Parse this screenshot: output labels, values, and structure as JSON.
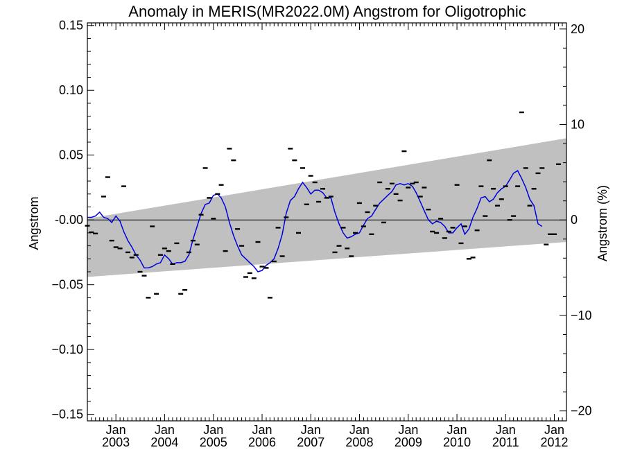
{
  "chart_data": {
    "type": "scatter",
    "title": "Anomaly in MERIS(MR2022.0M) Angstrom for Oligotrophic",
    "ylabel_left": "Angstrom",
    "ylabel_right": "Angstrom (%)",
    "ylim_left": [
      -0.155,
      0.152
    ],
    "ylim_right": [
      -21.04,
      20.64
    ],
    "y_ticks_left": [
      {
        "value": 0.15,
        "label": "0.15"
      },
      {
        "value": 0.1,
        "label": "0.10"
      },
      {
        "value": 0.05,
        "label": "0.05"
      },
      {
        "value": 0.0,
        "label": "-0.00"
      },
      {
        "value": -0.05,
        "label": "−0.05"
      },
      {
        "value": -0.1,
        "label": "−0.10"
      },
      {
        "value": -0.15,
        "label": "−0.15"
      }
    ],
    "y_ticks_right": [
      {
        "value": 20,
        "label": "20"
      },
      {
        "value": 10,
        "label": "10"
      },
      {
        "value": 0,
        "label": "0"
      },
      {
        "value": -10,
        "label": "−10"
      },
      {
        "value": -20,
        "label": "−20"
      }
    ],
    "x_range": [
      "2002-06-01",
      "2012-04-01"
    ],
    "x_ticks": [
      {
        "date": "2003-01-01",
        "month": "Jan",
        "year": "2003"
      },
      {
        "date": "2004-01-01",
        "month": "Jan",
        "year": "2004"
      },
      {
        "date": "2005-01-01",
        "month": "Jan",
        "year": "2005"
      },
      {
        "date": "2006-01-01",
        "month": "Jan",
        "year": "2006"
      },
      {
        "date": "2007-01-01",
        "month": "Jan",
        "year": "2007"
      },
      {
        "date": "2008-01-01",
        "month": "Jan",
        "year": "2008"
      },
      {
        "date": "2009-01-01",
        "month": "Jan",
        "year": "2009"
      },
      {
        "date": "2010-01-01",
        "month": "Jan",
        "year": "2010"
      },
      {
        "date": "2011-01-01",
        "month": "Jan",
        "year": "2011"
      },
      {
        "date": "2012-01-01",
        "month": "Jan",
        "year": "2012"
      }
    ],
    "band": {
      "upper_start": [
        "2002-06-01",
        0.001
      ],
      "upper_end": [
        "2012-04-01",
        0.063
      ],
      "lower_start": [
        "2002-06-01",
        -0.044
      ],
      "lower_end": [
        "2012-04-01",
        -0.017
      ],
      "color": "#c0c0c0"
    },
    "zero_line": 0.0,
    "colors": {
      "smoothed": "#0000dd",
      "points": "#000000",
      "band": "#c0c0c0"
    },
    "series": [
      {
        "type": "scatter",
        "marker": "dash",
        "points": [
          [
            "2002-06-01",
            -0.0045
          ],
          [
            "2002-07-01",
            -0.0095
          ],
          [
            "2002-08-01",
            -0.0105
          ],
          [
            "2002-10-01",
            0.018
          ],
          [
            "2002-11-01",
            0.033
          ],
          [
            "2002-12-01",
            -0.016
          ],
          [
            "2003-01-01",
            -0.021
          ],
          [
            "2003-02-01",
            -0.022
          ],
          [
            "2003-03-01",
            0.026
          ],
          [
            "2003-04-01",
            -0.025
          ],
          [
            "2003-05-01",
            -0.029
          ],
          [
            "2003-06-01",
            -0.027
          ],
          [
            "2003-07-01",
            -0.04
          ],
          [
            "2003-08-01",
            -0.043
          ],
          [
            "2003-09-01",
            -0.06
          ],
          [
            "2003-10-01",
            -0.005
          ],
          [
            "2003-11-01",
            -0.057
          ],
          [
            "2003-12-01",
            -0.027
          ],
          [
            "2004-01-01",
            -0.022
          ],
          [
            "2004-02-01",
            -0.024
          ],
          [
            "2004-03-01",
            -0.034
          ],
          [
            "2004-04-01",
            -0.018
          ],
          [
            "2004-05-01",
            -0.057
          ],
          [
            "2004-06-01",
            -0.054
          ],
          [
            "2004-07-01",
            -0.025
          ],
          [
            "2004-08-01",
            -0.016
          ],
          [
            "2004-09-01",
            -0.019
          ],
          [
            "2004-10-01",
            0.004
          ],
          [
            "2004-11-01",
            0.04
          ],
          [
            "2004-12-01",
            0.017
          ],
          [
            "2005-01-01",
            0.001
          ],
          [
            "2005-02-01",
            0.02
          ],
          [
            "2005-03-01",
            0.027
          ],
          [
            "2005-04-01",
            -0.024
          ],
          [
            "2005-05-01",
            0.055
          ],
          [
            "2005-06-01",
            0.046
          ],
          [
            "2005-07-01",
            -0.007
          ],
          [
            "2005-08-01",
            -0.02
          ],
          [
            "2005-09-01",
            -0.044
          ],
          [
            "2005-10-01",
            -0.041
          ],
          [
            "2005-11-01",
            -0.045
          ],
          [
            "2005-12-01",
            -0.017
          ],
          [
            "2006-01-01",
            -0.036
          ],
          [
            "2006-02-01",
            -0.037
          ],
          [
            "2006-03-01",
            -0.06
          ],
          [
            "2006-04-01",
            -0.032
          ],
          [
            "2006-05-01",
            -0.006
          ],
          [
            "2006-06-01",
            -0.028
          ],
          [
            "2006-07-01",
            0.002
          ],
          [
            "2006-08-01",
            0.055
          ],
          [
            "2006-09-01",
            0.046
          ],
          [
            "2006-10-01",
            -0.01
          ],
          [
            "2006-11-01",
            0.04
          ],
          [
            "2006-12-01",
            0.012
          ],
          [
            "2007-01-01",
            0.034
          ],
          [
            "2007-02-01",
            0.029
          ],
          [
            "2007-03-01",
            0.014
          ],
          [
            "2007-04-01",
            0.024
          ],
          [
            "2007-05-01",
            0.017
          ],
          [
            "2007-06-01",
            0.018
          ],
          [
            "2007-07-01",
            -0.025
          ],
          [
            "2007-08-01",
            -0.02
          ],
          [
            "2007-09-01",
            -0.006
          ],
          [
            "2007-10-01",
            -0.022
          ],
          [
            "2007-11-01",
            -0.028
          ],
          [
            "2007-12-01",
            -0.01
          ],
          [
            "2008-01-01",
            0.013
          ],
          [
            "2008-02-01",
            -0.005
          ],
          [
            "2008-03-01",
            0.006
          ],
          [
            "2008-04-01",
            -0.011
          ],
          [
            "2008-05-01",
            0.011
          ],
          [
            "2008-06-01",
            0.029
          ],
          [
            "2008-07-01",
            -0.002
          ],
          [
            "2008-08-01",
            0.024
          ],
          [
            "2008-09-01",
            0.028
          ],
          [
            "2008-10-01",
            0.02
          ],
          [
            "2008-11-01",
            0.015
          ],
          [
            "2008-12-01",
            0.053
          ],
          [
            "2009-01-01",
            0.025
          ],
          [
            "2009-02-01",
            0.028
          ],
          [
            "2009-03-01",
            0.029
          ],
          [
            "2009-04-01",
            0.018
          ],
          [
            "2009-05-01",
            0.025
          ],
          [
            "2009-06-01",
            0.008
          ],
          [
            "2009-07-01",
            -0.009
          ],
          [
            "2009-08-01",
            -0.01
          ],
          [
            "2009-09-01",
            0.001
          ],
          [
            "2009-10-01",
            -0.014
          ],
          [
            "2009-11-01",
            -0.009
          ],
          [
            "2009-12-01",
            -0.006
          ],
          [
            "2010-01-01",
            0.027
          ],
          [
            "2010-02-01",
            -0.018
          ],
          [
            "2010-03-01",
            -0.005
          ],
          [
            "2010-04-01",
            -0.03
          ],
          [
            "2010-05-01",
            -0.029
          ],
          [
            "2010-06-01",
            -0.008
          ],
          [
            "2010-07-01",
            0.026
          ],
          [
            "2010-08-01",
            0.003
          ],
          [
            "2010-09-01",
            0.046
          ],
          [
            "2010-10-01",
            0.024
          ],
          [
            "2010-11-01",
            0.011
          ],
          [
            "2010-12-01",
            0.016
          ],
          [
            "2011-01-01",
            0.026
          ],
          [
            "2011-02-01",
            0.0
          ],
          [
            "2011-03-01",
            0.003
          ],
          [
            "2011-04-01",
            0.026
          ],
          [
            "2011-05-01",
            0.083
          ],
          [
            "2011-06-01",
            0.04
          ],
          [
            "2011-07-01",
            0.011
          ],
          [
            "2011-08-01",
            0.024
          ],
          [
            "2011-09-01",
            0.036
          ],
          [
            "2011-10-01",
            0.04
          ],
          [
            "2011-11-01",
            -0.019
          ],
          [
            "2011-12-01",
            -0.011
          ],
          [
            "2012-01-01",
            -0.011
          ],
          [
            "2012-02-01",
            0.043
          ]
        ]
      },
      {
        "type": "line",
        "points": [
          [
            "2002-06-01",
            0.002
          ],
          [
            "2002-07-01",
            0.002
          ],
          [
            "2002-08-01",
            0.003
          ],
          [
            "2002-09-01",
            0.006
          ],
          [
            "2002-10-01",
            0.002
          ],
          [
            "2002-11-01",
            0.001
          ],
          [
            "2002-12-01",
            -0.002
          ],
          [
            "2003-01-01",
            0.003
          ],
          [
            "2003-02-01",
            -0.001
          ],
          [
            "2003-03-01",
            -0.009
          ],
          [
            "2003-04-01",
            -0.016
          ],
          [
            "2003-05-01",
            -0.021
          ],
          [
            "2003-06-01",
            -0.027
          ],
          [
            "2003-07-01",
            -0.031
          ],
          [
            "2003-08-01",
            -0.037
          ],
          [
            "2003-09-01",
            -0.037
          ],
          [
            "2003-10-01",
            -0.036
          ],
          [
            "2003-11-01",
            -0.034
          ],
          [
            "2003-12-01",
            -0.033
          ],
          [
            "2004-01-01",
            -0.027
          ],
          [
            "2004-02-01",
            -0.03
          ],
          [
            "2004-03-01",
            -0.034
          ],
          [
            "2004-04-01",
            -0.033
          ],
          [
            "2004-05-01",
            -0.033
          ],
          [
            "2004-06-01",
            -0.032
          ],
          [
            "2004-07-01",
            -0.027
          ],
          [
            "2004-08-01",
            -0.015
          ],
          [
            "2004-09-01",
            -0.005
          ],
          [
            "2004-10-01",
            0.005
          ],
          [
            "2004-11-01",
            0.012
          ],
          [
            "2004-12-01",
            0.013
          ],
          [
            "2005-01-01",
            0.019
          ],
          [
            "2005-02-01",
            0.02
          ],
          [
            "2005-03-01",
            0.017
          ],
          [
            "2005-04-01",
            0.01
          ],
          [
            "2005-05-01",
            -0.002
          ],
          [
            "2005-06-01",
            -0.012
          ],
          [
            "2005-07-01",
            -0.02
          ],
          [
            "2005-08-01",
            -0.027
          ],
          [
            "2005-09-01",
            -0.03
          ],
          [
            "2005-10-01",
            -0.033
          ],
          [
            "2005-11-01",
            -0.036
          ],
          [
            "2005-12-01",
            -0.04
          ],
          [
            "2006-01-01",
            -0.039
          ],
          [
            "2006-02-01",
            -0.035
          ],
          [
            "2006-03-01",
            -0.033
          ],
          [
            "2006-04-01",
            -0.03
          ],
          [
            "2006-05-01",
            -0.022
          ],
          [
            "2006-06-01",
            -0.011
          ],
          [
            "2006-07-01",
            0.005
          ],
          [
            "2006-08-01",
            0.015
          ],
          [
            "2006-09-01",
            0.018
          ],
          [
            "2006-10-01",
            0.024
          ],
          [
            "2006-11-01",
            0.029
          ],
          [
            "2006-12-01",
            0.025
          ],
          [
            "2007-01-01",
            0.02
          ],
          [
            "2007-02-01",
            0.023
          ],
          [
            "2007-03-01",
            0.023
          ],
          [
            "2007-04-01",
            0.021
          ],
          [
            "2007-05-01",
            0.017
          ],
          [
            "2007-06-01",
            0.017
          ],
          [
            "2007-07-01",
            0.006
          ],
          [
            "2007-08-01",
            -0.003
          ],
          [
            "2007-09-01",
            -0.01
          ],
          [
            "2007-10-01",
            -0.014
          ],
          [
            "2007-11-01",
            -0.013
          ],
          [
            "2007-12-01",
            -0.011
          ],
          [
            "2008-01-01",
            -0.01
          ],
          [
            "2008-02-01",
            -0.004
          ],
          [
            "2008-03-01",
            0.001
          ],
          [
            "2008-04-01",
            0.003
          ],
          [
            "2008-05-01",
            0.008
          ],
          [
            "2008-06-01",
            0.013
          ],
          [
            "2008-07-01",
            0.016
          ],
          [
            "2008-08-01",
            0.019
          ],
          [
            "2008-09-01",
            0.022
          ],
          [
            "2008-10-01",
            0.027
          ],
          [
            "2008-11-01",
            0.028
          ],
          [
            "2008-12-01",
            0.027
          ],
          [
            "2009-01-01",
            0.028
          ],
          [
            "2009-02-01",
            0.026
          ],
          [
            "2009-03-01",
            0.021
          ],
          [
            "2009-04-01",
            0.014
          ],
          [
            "2009-05-01",
            0.007
          ],
          [
            "2009-06-01",
            0.0
          ],
          [
            "2009-07-01",
            -0.003
          ],
          [
            "2009-08-01",
            -0.001
          ],
          [
            "2009-09-01",
            -0.002
          ],
          [
            "2009-10-01",
            -0.005
          ],
          [
            "2009-11-01",
            -0.01
          ],
          [
            "2009-12-01",
            -0.01
          ],
          [
            "2010-01-01",
            -0.006
          ],
          [
            "2010-02-01",
            -0.003
          ],
          [
            "2010-03-01",
            -0.011
          ],
          [
            "2010-04-01",
            -0.007
          ],
          [
            "2010-05-01",
            0.002
          ],
          [
            "2010-06-01",
            0.009
          ],
          [
            "2010-07-01",
            0.017
          ],
          [
            "2010-08-01",
            0.018
          ],
          [
            "2010-09-01",
            0.014
          ],
          [
            "2010-10-01",
            0.016
          ],
          [
            "2010-11-01",
            0.021
          ],
          [
            "2010-12-01",
            0.024
          ],
          [
            "2011-01-01",
            0.026
          ],
          [
            "2011-02-01",
            0.031
          ],
          [
            "2011-03-01",
            0.036
          ],
          [
            "2011-04-01",
            0.038
          ],
          [
            "2011-05-01",
            0.032
          ],
          [
            "2011-06-01",
            0.025
          ],
          [
            "2011-07-01",
            0.016
          ],
          [
            "2011-08-01",
            0.011
          ],
          [
            "2011-09-01",
            -0.003
          ],
          [
            "2011-10-01",
            -0.005
          ]
        ]
      }
    ]
  }
}
